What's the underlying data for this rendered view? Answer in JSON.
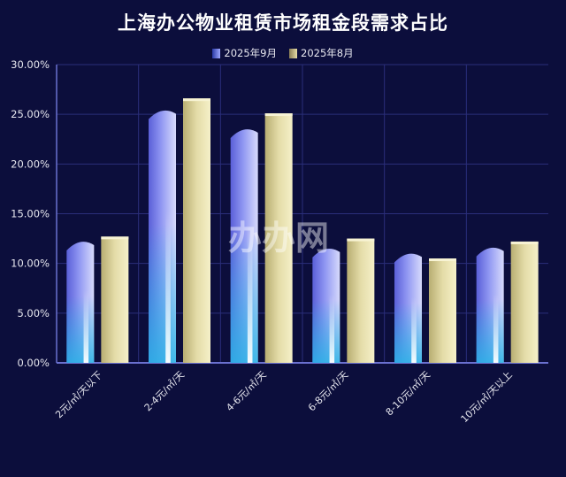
{
  "chart_data": {
    "type": "bar",
    "title": "上海办公物业租赁市场租金段需求占比",
    "categories": [
      "2元/㎡/天以下",
      "2-4元/㎡/天",
      "4-6元/㎡/天",
      "6-8元/㎡/天",
      "8-10元/㎡/天",
      "10元/㎡/天以上"
    ],
    "series": [
      {
        "name": "2025年9月",
        "values": [
          12.2,
          25.4,
          23.5,
          11.5,
          11.0,
          11.6
        ]
      },
      {
        "name": "2025年8月",
        "values": [
          12.7,
          26.6,
          25.1,
          12.5,
          10.5,
          12.2
        ]
      }
    ],
    "ylim": [
      0,
      30
    ],
    "yticks": [
      "0.00%",
      "5.00%",
      "10.00%",
      "15.00%",
      "20.00%",
      "25.00%",
      "30.00%"
    ],
    "legend_position": "top-center",
    "grid": true
  },
  "watermark": "办办网",
  "colors": {
    "background": "#0c0e3c",
    "grid": "#2a2e7a",
    "axis": "#6a70d0",
    "sep_dark": "#3f45c4",
    "sep_light": "#a8aef5",
    "sep_base": "#1fa7d6",
    "aug_dark": "#b2a86a",
    "aug_light": "#f0eab8"
  }
}
